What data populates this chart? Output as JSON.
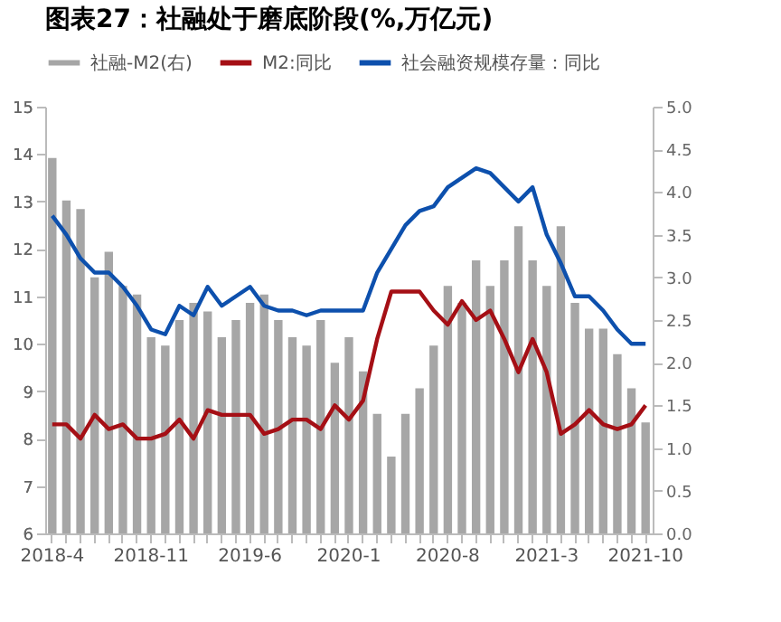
{
  "chart_data": {
    "type": "bar",
    "title": "图表27：社融处于磨底阶段(%,万亿元)",
    "categories": [
      "2018-4",
      null,
      null,
      null,
      null,
      null,
      null,
      "2018-11",
      null,
      null,
      null,
      null,
      null,
      null,
      "2019-6",
      null,
      null,
      null,
      null,
      null,
      null,
      "2020-1",
      null,
      null,
      null,
      null,
      null,
      null,
      "2020-8",
      null,
      null,
      null,
      null,
      null,
      null,
      "2021-3",
      null,
      null,
      null,
      null,
      null,
      null,
      "2021-10"
    ],
    "series": [
      {
        "name": "社融-M2(右)",
        "axis": "y2",
        "color": "#a6a6a6",
        "values": [
          4.4,
          3.9,
          3.8,
          3.0,
          3.3,
          2.9,
          2.8,
          2.3,
          2.2,
          2.5,
          2.7,
          2.6,
          2.3,
          2.5,
          2.7,
          2.8,
          2.5,
          2.3,
          2.2,
          2.5,
          2.0,
          2.3,
          1.9,
          1.4,
          0.9,
          1.4,
          1.7,
          2.2,
          2.9,
          2.7,
          3.2,
          2.9,
          3.2,
          3.6,
          3.2,
          2.9,
          3.6,
          2.7,
          2.4,
          2.4,
          2.1,
          1.7,
          1.3
        ]
      },
      {
        "name": "M2:同比",
        "type": "line",
        "color": "#a50f15",
        "values": [
          8.3,
          8.3,
          8.0,
          8.5,
          8.2,
          8.3,
          8.0,
          8.0,
          8.1,
          8.4,
          8.0,
          8.6,
          8.5,
          8.5,
          8.5,
          8.1,
          8.2,
          8.4,
          8.4,
          8.2,
          8.7,
          8.4,
          8.8,
          10.1,
          11.1,
          11.1,
          11.1,
          10.7,
          10.4,
          10.9,
          10.5,
          10.7,
          10.1,
          9.4,
          10.1,
          9.4,
          8.1,
          8.3,
          8.6,
          8.3,
          8.2,
          8.3,
          8.7
        ]
      },
      {
        "name": "社会融资规模存量：同比",
        "type": "line",
        "color": "#0d50ad",
        "values": [
          12.7,
          12.3,
          11.8,
          11.5,
          11.5,
          11.2,
          10.8,
          10.3,
          10.2,
          10.8,
          10.6,
          11.2,
          10.8,
          11.0,
          11.2,
          10.8,
          10.7,
          10.7,
          10.6,
          10.7,
          10.7,
          10.7,
          10.7,
          11.5,
          12.0,
          12.5,
          12.8,
          12.9,
          13.3,
          13.5,
          13.7,
          13.6,
          13.3,
          13.0,
          13.3,
          12.3,
          11.7,
          11.0,
          11.0,
          10.7,
          10.3,
          10.0,
          10.0
        ]
      }
    ],
    "ylim": [
      6,
      15
    ],
    "yticks": [
      6,
      7,
      8,
      9,
      10,
      11,
      12,
      13,
      14,
      15
    ],
    "y2lim": [
      0,
      5
    ],
    "y2ticks": [
      {
        "value": 0,
        "label": "0.0"
      },
      {
        "value": 0.5,
        "label": "0.5"
      },
      {
        "value": 1,
        "label": "1.0"
      },
      {
        "value": 1.5,
        "label": "1.5"
      },
      {
        "value": 2,
        "label": "2.0"
      },
      {
        "value": 2.5,
        "label": "2.5"
      },
      {
        "value": 3,
        "label": "3.0"
      },
      {
        "value": 3.5,
        "label": "3.5"
      },
      {
        "value": 4,
        "label": "4.0"
      },
      {
        "value": 4.5,
        "label": "4.5"
      },
      {
        "value": 5,
        "label": "5.0"
      }
    ],
    "legend": "top"
  }
}
